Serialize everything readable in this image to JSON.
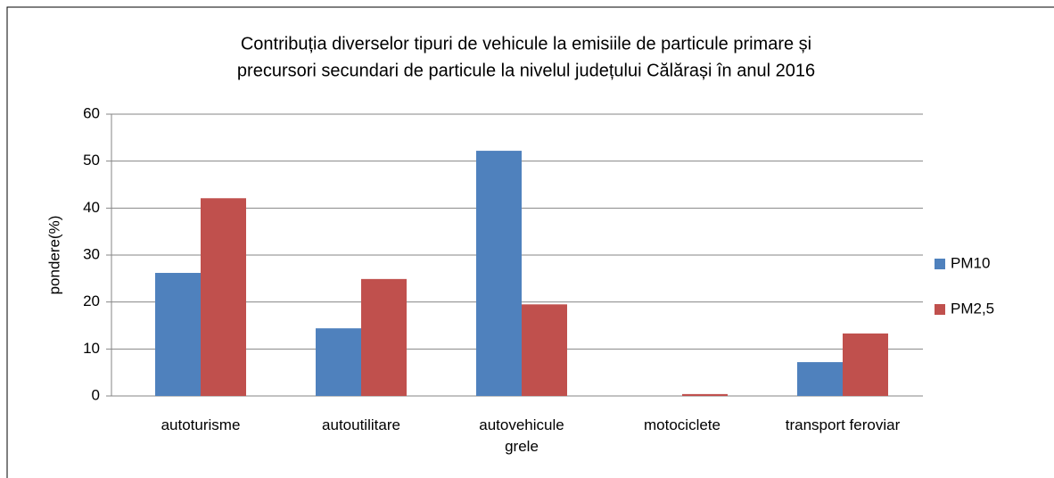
{
  "chart_data": {
    "type": "bar",
    "title": [
      "Contribuția diverselor tipuri de vehicule la emisiile de particule primare și",
      "precursori secundari de particule la nivelul județului Călărași în anul 2016"
    ],
    "y_label": "pondere(%)",
    "categories": [
      "autoturisme",
      "autoutilitare",
      "autovehicule grele",
      "motociclete",
      "transport feroviar"
    ],
    "series": [
      {
        "name": "PM10",
        "color": "#4f81bd",
        "values": [
          26.2,
          14.4,
          52.2,
          0,
          7.2
        ]
      },
      {
        "name": "PM2,5",
        "color": "#c0504d",
        "values": [
          42.1,
          24.9,
          19.5,
          0.4,
          13.3
        ]
      }
    ],
    "ylim": [
      0,
      60
    ],
    "yticks": [
      0,
      10,
      20,
      30,
      40,
      50,
      60
    ],
    "grid": true,
    "legend": "right"
  }
}
